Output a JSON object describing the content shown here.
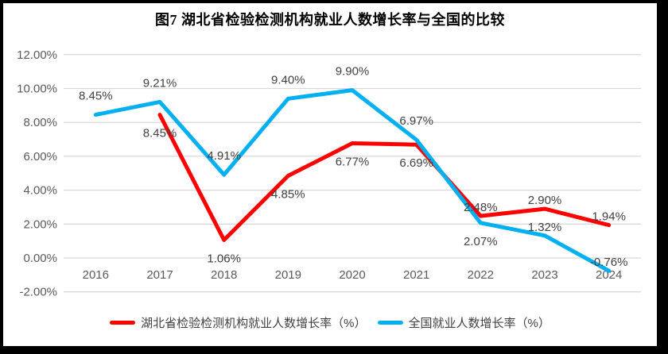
{
  "page": {
    "background": "#ffffff",
    "frame_border_color": "#000000"
  },
  "chart_data": {
    "type": "line",
    "title": "图7 湖北省检验检测机构就业人数增长率与全国的比较",
    "categories": [
      "2016",
      "2017",
      "2018",
      "2019",
      "2020",
      "2021",
      "2022",
      "2023",
      "2024"
    ],
    "series": [
      {
        "name": "湖北省检验检测机构就业人数增长率（%）",
        "color": "#ff0000",
        "values": [
          null,
          8.45,
          1.06,
          4.85,
          6.77,
          6.69,
          2.48,
          2.9,
          1.94
        ],
        "labels": [
          null,
          "8.45%",
          "1.06%",
          "4.85%",
          "6.77%",
          "6.69%",
          "2.48%",
          "2.90%",
          "1.94%"
        ],
        "label_pos": [
          null,
          "below",
          "below",
          "below",
          "below",
          "below",
          "above",
          "above",
          "above"
        ]
      },
      {
        "name": "全国就业人数增长率（%）",
        "color": "#00b0f0",
        "values": [
          8.45,
          9.21,
          4.91,
          9.4,
          9.9,
          6.97,
          2.07,
          1.32,
          -0.76
        ],
        "labels": [
          "8.45%",
          "9.21%",
          "4.91%",
          "9.40%",
          "9.90%",
          "6.97%",
          "2.07%",
          "1.32%",
          "-0.76%"
        ],
        "label_pos": [
          "far-above",
          "far-above",
          "far-above",
          "far-above",
          "far-above",
          "far-above",
          "below",
          "above",
          "above"
        ]
      }
    ],
    "y_axis": {
      "min": -2,
      "max": 12,
      "step": 2,
      "tick_labels": [
        "12.00%",
        "10.00%",
        "8.00%",
        "6.00%",
        "4.00%",
        "2.00%",
        "0.00%",
        "-2.00%"
      ]
    },
    "x_axis": {
      "tick_labels": [
        "2016",
        "2017",
        "2018",
        "2019",
        "2020",
        "2021",
        "2022",
        "2023",
        "2024"
      ]
    },
    "grid": true,
    "legend_position": "bottom",
    "colors": {
      "gridline": "#d9d9d9",
      "axis_text": "#595959",
      "data_label_text": "#404040",
      "hubei_line": "#ff0000",
      "national_line": "#00b0f0"
    }
  }
}
